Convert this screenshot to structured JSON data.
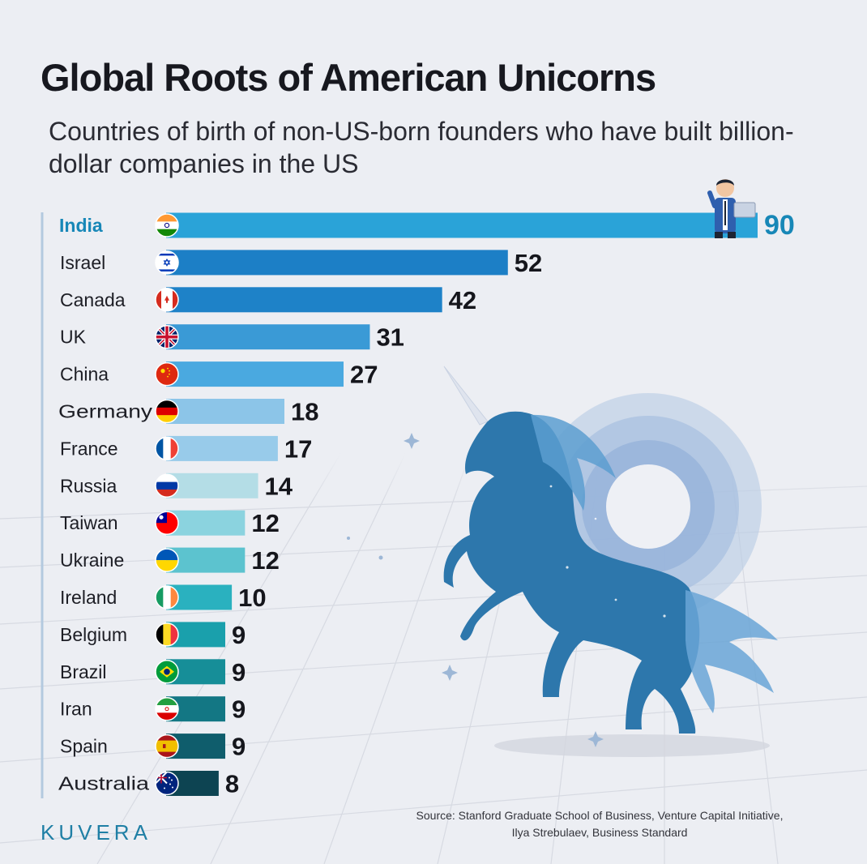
{
  "header": {
    "title": "Global Roots of American Unicorns",
    "subtitle": "Countries of birth of non-US-born founders who have built billion-dollar companies in the US"
  },
  "chart_data": {
    "type": "bar",
    "orientation": "horizontal",
    "title": "Global Roots of American Unicorns",
    "subtitle": "Countries of birth of non-US-born founders who have built billion-dollar companies in the US",
    "xlabel": "",
    "ylabel": "",
    "categories": [
      "India",
      "Israel",
      "Canada",
      "UK",
      "China",
      "Germany",
      "France",
      "Russia",
      "Taiwan",
      "Ukraine",
      "Ireland",
      "Belgium",
      "Brazil",
      "Iran",
      "Spain",
      "Australia"
    ],
    "values": [
      90,
      52,
      42,
      31,
      27,
      18,
      17,
      14,
      12,
      12,
      10,
      9,
      9,
      9,
      9,
      8
    ],
    "flags": [
      "india-flag-icon",
      "israel-flag-icon",
      "canada-flag-icon",
      "uk-flag-icon",
      "china-flag-icon",
      "germany-flag-icon",
      "france-flag-icon",
      "russia-flag-icon",
      "taiwan-flag-icon",
      "ukraine-flag-icon",
      "ireland-flag-icon",
      "belgium-flag-icon",
      "brazil-flag-icon",
      "iran-flag-icon",
      "spain-flag-icon",
      "australia-flag-icon"
    ],
    "bar_colors": [
      "#2aa3d8",
      "#1c7fc6",
      "#1e82c8",
      "#3a9ad6",
      "#4aa9e0",
      "#8cc5e8",
      "#98cbea",
      "#b4dde6",
      "#8bd3df",
      "#5cc3cf",
      "#2ab1bf",
      "#1aa0ac",
      "#168e98",
      "#137784",
      "#0f5d6c",
      "#0d4452"
    ],
    "xlim": [
      0,
      90
    ],
    "highlight": "India",
    "grid": false,
    "legend": "none"
  },
  "decor": {
    "illustration": "unicorn-illustration",
    "character": "founder-with-laptop-illustration"
  },
  "footer": {
    "brand": "KUVERA",
    "source_line1": "Source: Stanford Graduate School of Business, Venture Capital Initiative,",
    "source_line2": "Ilya Strebulaev, Business Standard"
  }
}
